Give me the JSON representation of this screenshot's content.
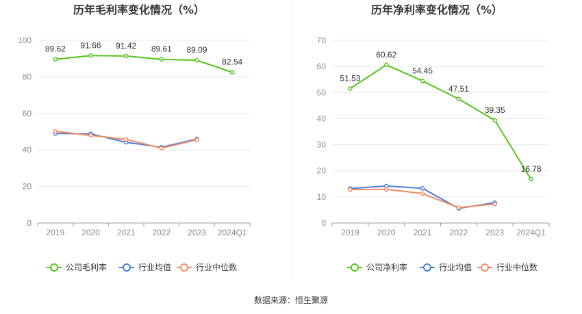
{
  "footer": {
    "source": "数据来源：恒生聚源"
  },
  "chart_data": [
    {
      "type": "line",
      "title": "历年毛利率变化情况（%）",
      "categories": [
        "2019",
        "2020",
        "2021",
        "2022",
        "2023",
        "2024Q1"
      ],
      "ylim": [
        0,
        100
      ],
      "yticks": [
        0,
        20,
        40,
        60,
        80,
        100
      ],
      "grid": true,
      "legend_position": "bottom",
      "series": [
        {
          "name": "公司毛利率",
          "color": "#52c41a",
          "values": [
            89.62,
            91.66,
            91.42,
            89.61,
            89.09,
            82.54
          ],
          "labels": [
            "89.62",
            "91.66",
            "91.42",
            "89.61",
            "89.09",
            "82.54"
          ]
        },
        {
          "name": "行业均值",
          "color": "#4a7bd8",
          "values": [
            49.0,
            48.8,
            44.2,
            41.5,
            46.0,
            null
          ]
        },
        {
          "name": "行业中位数",
          "color": "#f08a65",
          "values": [
            50.2,
            48.0,
            45.8,
            41.0,
            45.6,
            null
          ]
        }
      ]
    },
    {
      "type": "line",
      "title": "历年净利率变化情况（%）",
      "categories": [
        "2019",
        "2020",
        "2021",
        "2022",
        "2023",
        "2024Q1"
      ],
      "ylim": [
        0,
        70
      ],
      "yticks": [
        0,
        10,
        20,
        30,
        40,
        50,
        60,
        70
      ],
      "grid": true,
      "legend_position": "bottom",
      "series": [
        {
          "name": "公司净利率",
          "color": "#52c41a",
          "values": [
            51.53,
            60.62,
            54.45,
            47.51,
            39.35,
            16.78
          ],
          "labels": [
            "51.53",
            "60.62",
            "54.45",
            "47.51",
            "39.35",
            "16.78"
          ]
        },
        {
          "name": "行业均值",
          "color": "#4a7bd8",
          "values": [
            13.2,
            14.2,
            13.3,
            5.6,
            7.8,
            null
          ]
        },
        {
          "name": "行业中位数",
          "color": "#f08a65",
          "values": [
            12.8,
            12.9,
            11.3,
            5.9,
            7.3,
            null
          ]
        }
      ]
    }
  ]
}
